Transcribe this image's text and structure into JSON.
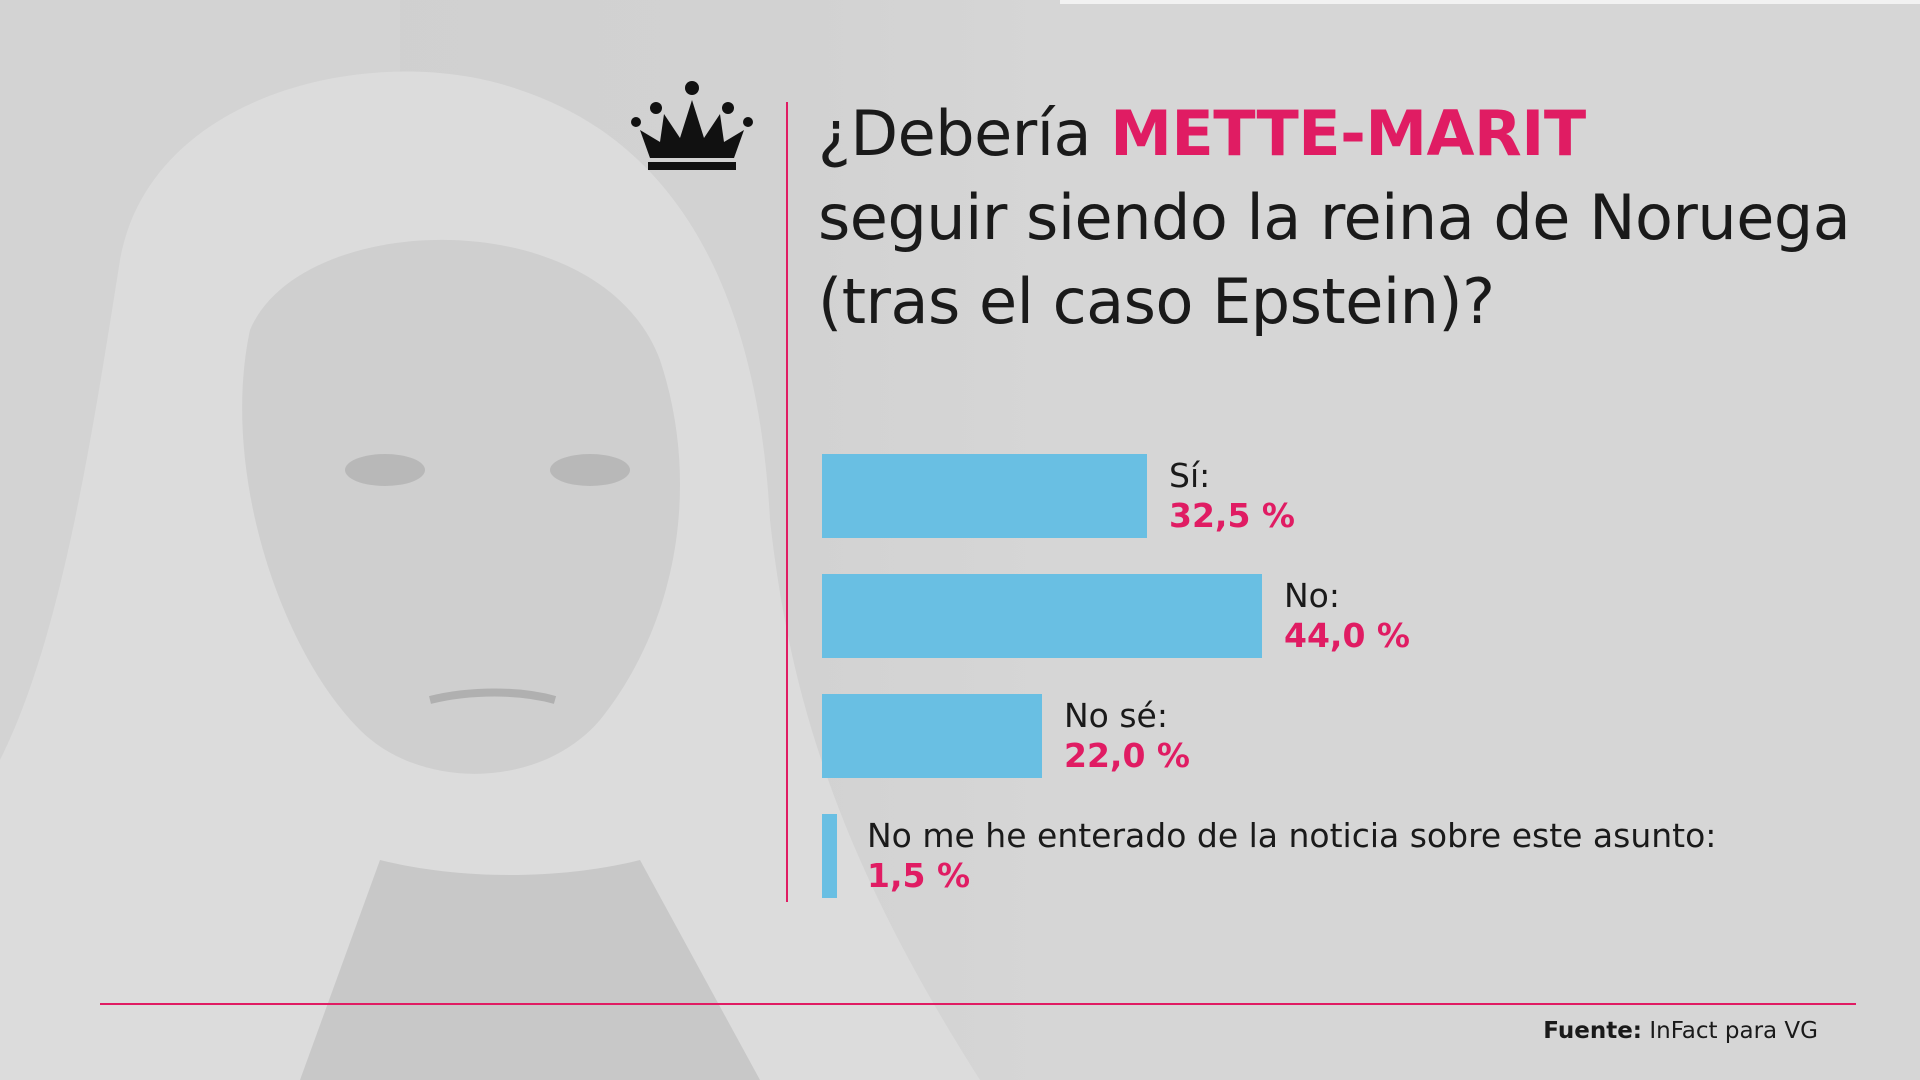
{
  "title": {
    "prefix": "¿Debería ",
    "highlight": "METTE-MARIT",
    "line2": "seguir siendo la reina de Noruega",
    "line3": "(tras el caso Epstein)?"
  },
  "source": {
    "label": "Fuente:",
    "text": "InFact para VG"
  },
  "icons": [
    "crown-icon",
    "portrait-photo"
  ],
  "colors": {
    "bar": "#69bfe3",
    "accent": "#e01c63",
    "background": "#d6d6d6",
    "text": "#1a1a1a"
  },
  "chart_data": {
    "type": "bar",
    "orientation": "horizontal",
    "categories": [
      "Sí:",
      "No:",
      "No sé:",
      "No me he enterado de la noticia sobre este asunto:"
    ],
    "values": [
      32.5,
      44.0,
      22.0,
      1.5
    ],
    "value_labels": [
      "32,5 %",
      "44,0 %",
      "22,0 %",
      "1,5 %"
    ],
    "unit": "%",
    "xlim": [
      0,
      100
    ],
    "grid": false,
    "legend": "none"
  }
}
